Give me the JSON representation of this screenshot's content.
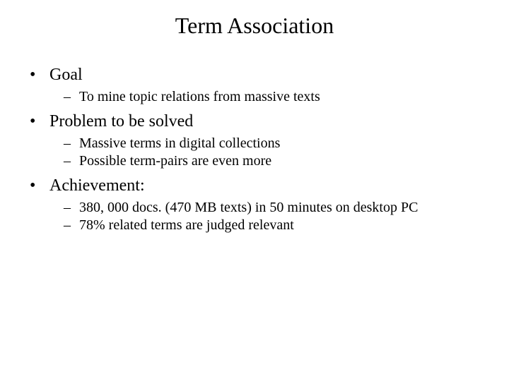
{
  "title": "Term Association",
  "sections": [
    {
      "heading": "Goal",
      "items": [
        "To mine topic relations from massive texts"
      ]
    },
    {
      "heading": "Problem to be solved",
      "items": [
        "Massive terms in digital collections",
        "Possible term-pairs are even more"
      ]
    },
    {
      "heading": "Achievement:",
      "items": [
        "380, 000 docs. (470 MB texts) in 50 minutes on desktop PC",
        "78% related terms are judged relevant"
      ]
    }
  ],
  "style": {
    "background_color": "#ffffff",
    "text_color": "#000000",
    "font_family": "Times New Roman",
    "title_fontsize": 32,
    "l1_fontsize": 24,
    "l2_fontsize": 20,
    "l1_bullet": "•",
    "l2_bullet": "–"
  }
}
